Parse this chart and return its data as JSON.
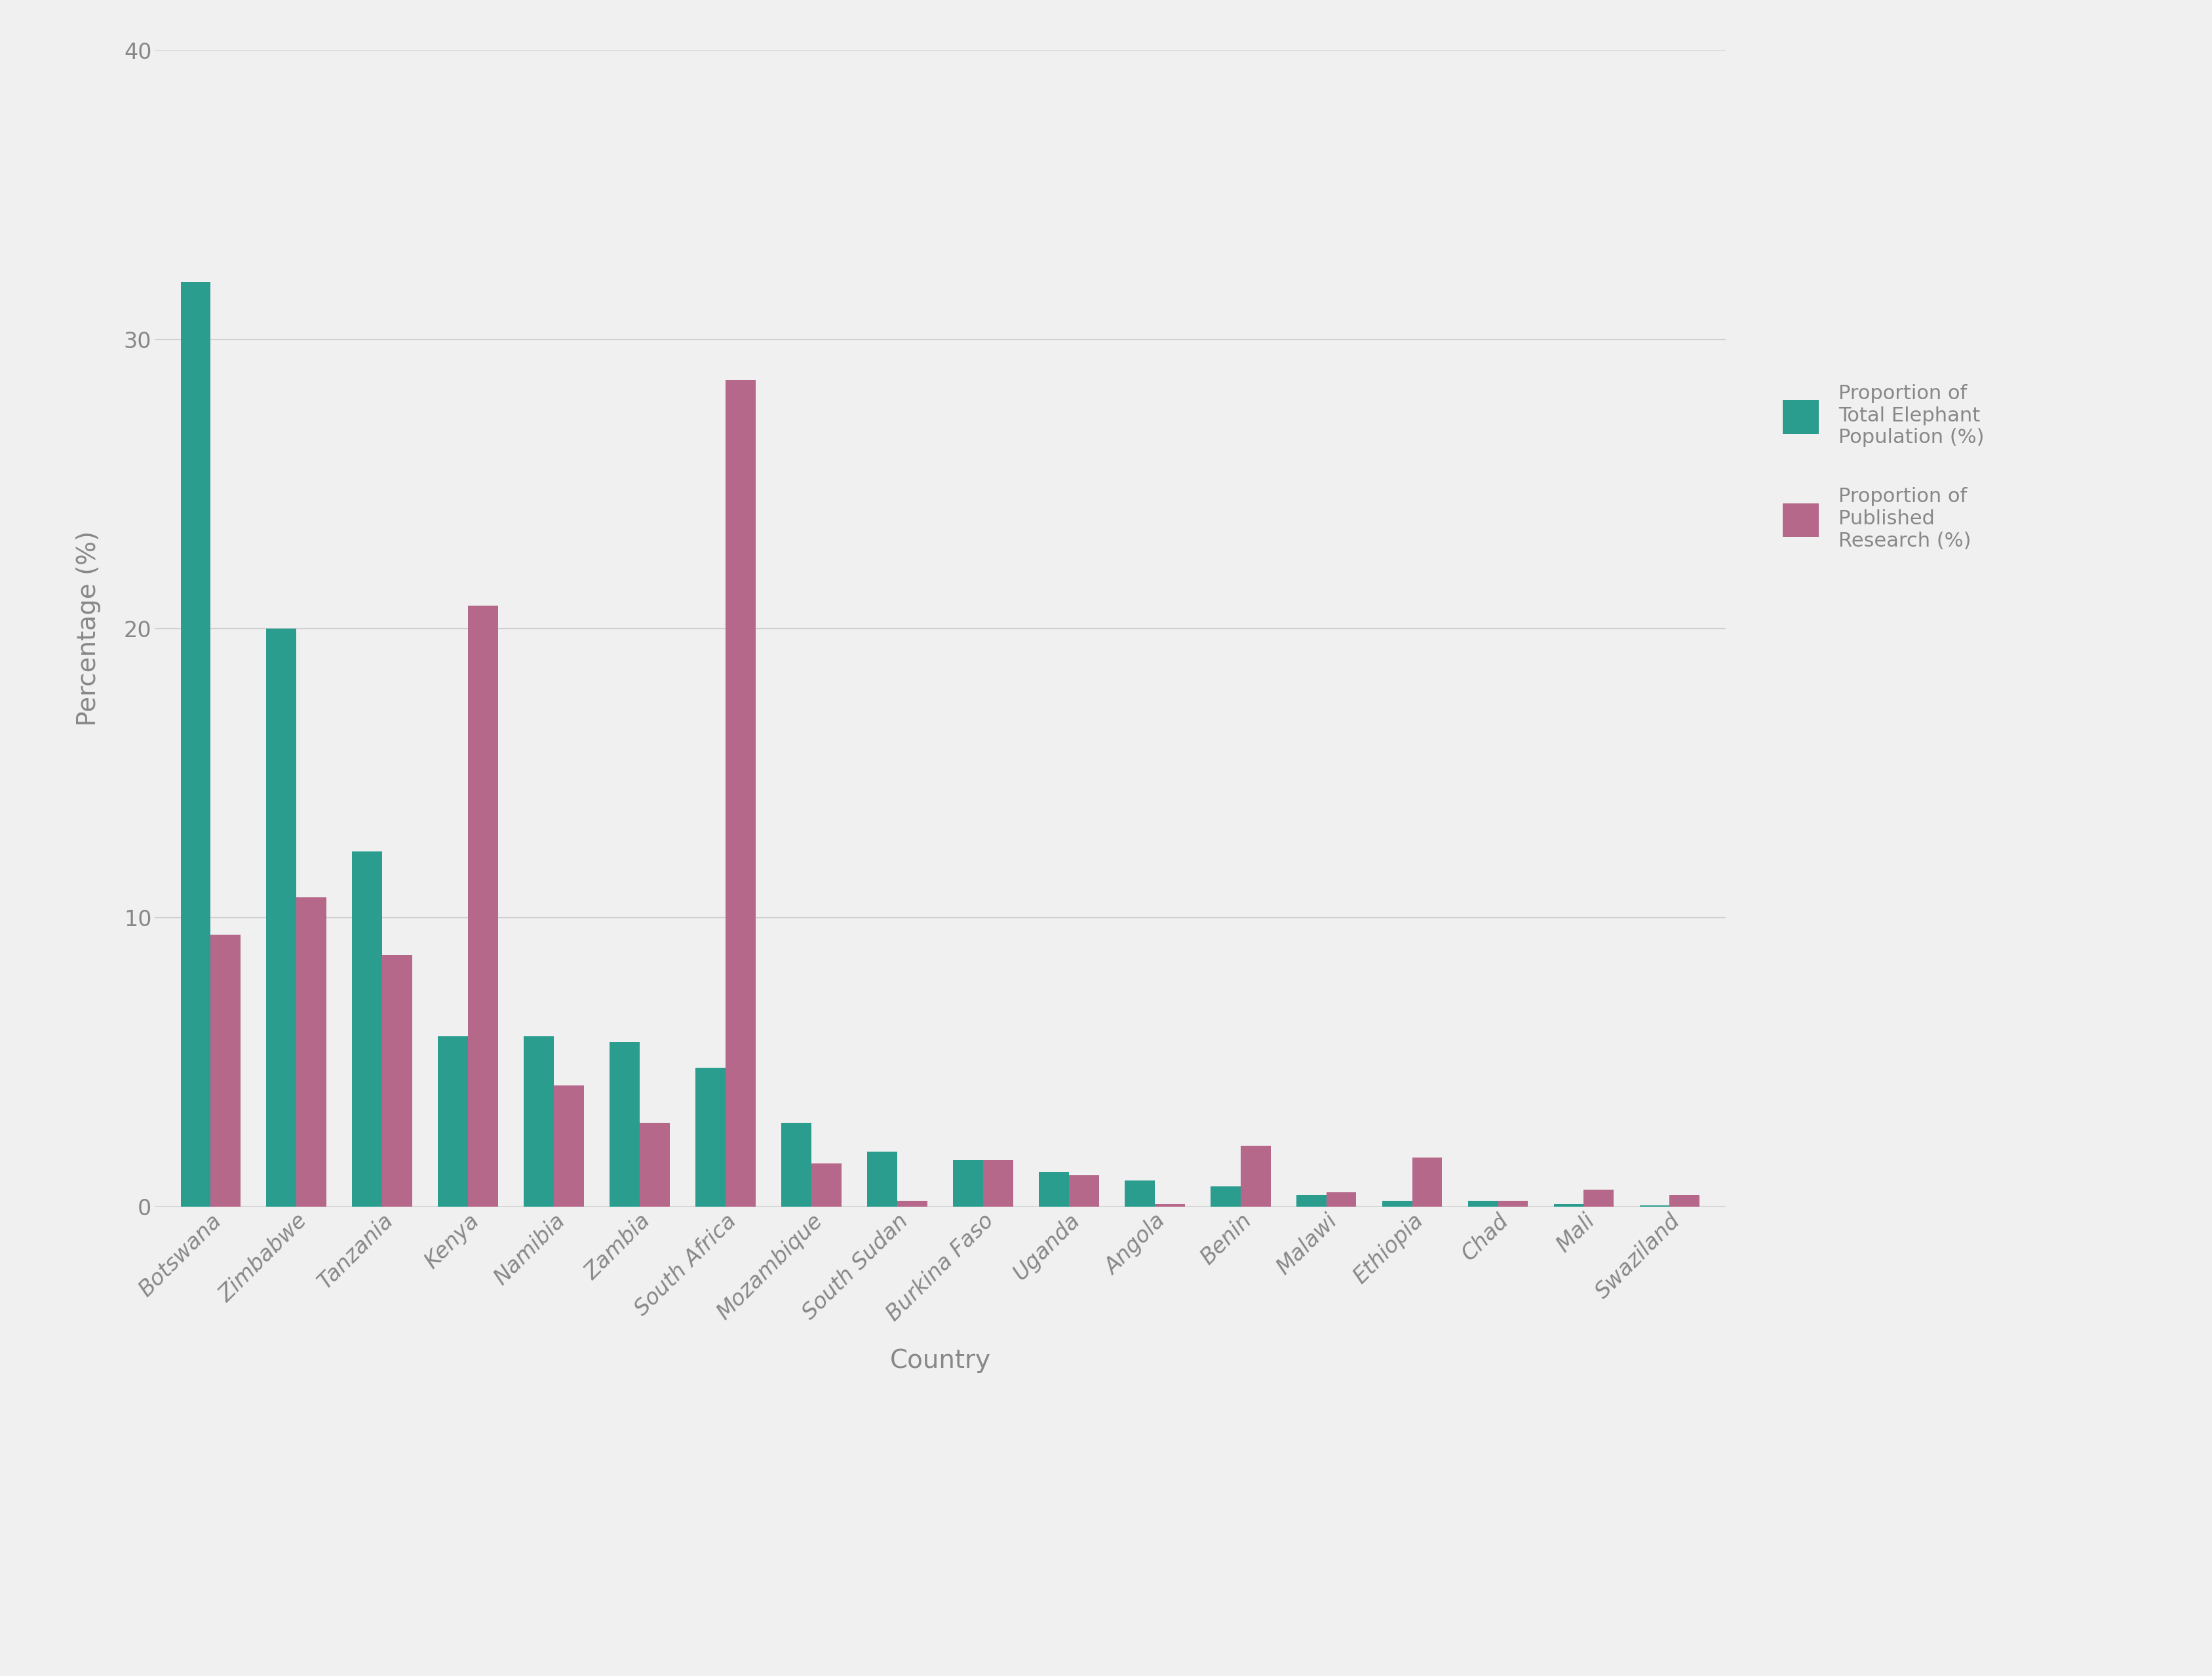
{
  "categories": [
    "Botswana",
    "Zimbabwe",
    "Tanzania",
    "Kenya",
    "Namibia",
    "Zambia",
    "South Africa",
    "Mozambique",
    "South Sudan",
    "Burkina Faso",
    "Uganda",
    "Angola",
    "Benin",
    "Malawi",
    "Ethiopia",
    "Chad",
    "Mali",
    "Swaziland"
  ],
  "population_pct": [
    32.0,
    20.0,
    12.3,
    5.9,
    5.9,
    5.7,
    4.8,
    2.9,
    1.9,
    1.6,
    1.2,
    0.9,
    0.7,
    0.4,
    0.2,
    0.2,
    0.1,
    0.05
  ],
  "research_pct": [
    9.4,
    10.7,
    8.7,
    20.8,
    4.2,
    2.9,
    28.6,
    1.5,
    0.2,
    1.6,
    1.1,
    0.1,
    2.1,
    0.5,
    1.7,
    0.2,
    0.6,
    0.4
  ],
  "color_population": "#2a9d8f",
  "color_research": "#b5688a",
  "xlabel": "Country",
  "ylabel": "Percentage (%)",
  "legend_label_1": "Proportion of\nTotal Elephant\nPopulation (%)",
  "legend_label_2": "Proportion of\nPublished\nResearch (%)",
  "ylim": [
    0,
    40
  ],
  "yticks": [
    0,
    10,
    20,
    30,
    40
  ],
  "background_color": "#f0f0f0",
  "grid_color": "#d0d0d0",
  "bar_width": 0.35,
  "tick_fontsize": 24,
  "label_fontsize": 28,
  "legend_fontsize": 22
}
